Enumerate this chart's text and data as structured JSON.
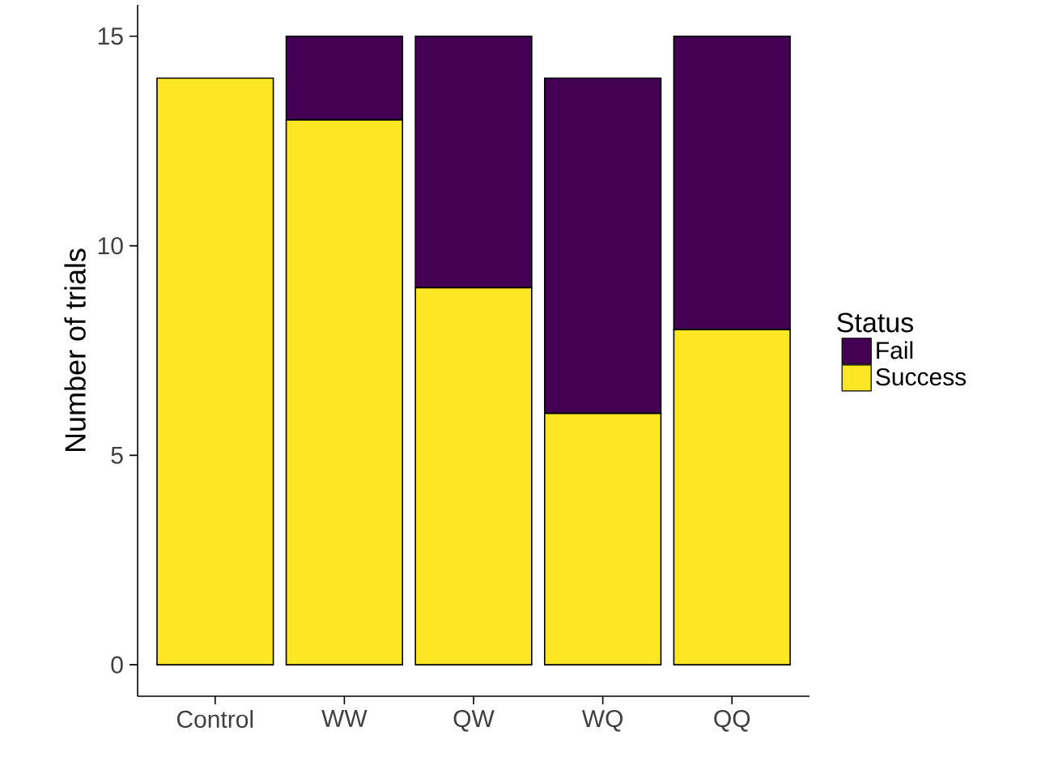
{
  "chart_data": {
    "type": "bar",
    "stacked": true,
    "ylabel": "Number of trials",
    "legend_title": "Status",
    "legend": "right",
    "categories": [
      "Control",
      "WW",
      "QW",
      "WQ",
      "QQ"
    ],
    "series": [
      {
        "name": "Success",
        "color": "#fde725",
        "values": [
          14,
          13,
          9,
          6,
          8
        ]
      },
      {
        "name": "Fail",
        "color": "#440154",
        "values": [
          0,
          2,
          6,
          8,
          7
        ]
      }
    ],
    "ylim": [
      -0.75,
      15.75
    ],
    "yticks": [
      0,
      5,
      10,
      15
    ]
  }
}
